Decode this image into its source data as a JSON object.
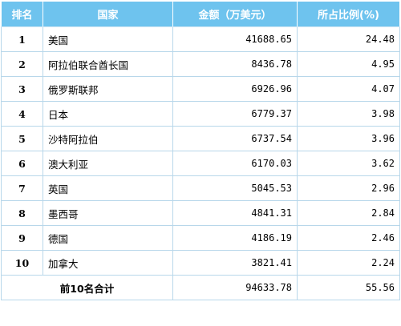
{
  "header": {
    "rank": "排名",
    "country": "国家",
    "amount": "金额（万美元）",
    "share": "所占比例(%)"
  },
  "rows": [
    {
      "rank": "1",
      "country": "美国",
      "amount": "41688.65",
      "share": "24.48"
    },
    {
      "rank": "2",
      "country": "阿拉伯联合酋长国",
      "amount": "8436.78",
      "share": "4.95"
    },
    {
      "rank": "3",
      "country": "俄罗斯联邦",
      "amount": "6926.96",
      "share": "4.07"
    },
    {
      "rank": "4",
      "country": "日本",
      "amount": "6779.37",
      "share": "3.98"
    },
    {
      "rank": "5",
      "country": "沙特阿拉伯",
      "amount": "6737.54",
      "share": "3.96"
    },
    {
      "rank": "6",
      "country": "澳大利亚",
      "amount": "6170.03",
      "share": "3.62"
    },
    {
      "rank": "7",
      "country": "英国",
      "amount": "5045.53",
      "share": "2.96"
    },
    {
      "rank": "8",
      "country": "墨西哥",
      "amount": "4841.31",
      "share": "2.84"
    },
    {
      "rank": "9",
      "country": "德国",
      "amount": "4186.19",
      "share": "2.46"
    },
    {
      "rank": "10",
      "country": "加拿大",
      "amount": "3821.41",
      "share": "2.24"
    }
  ],
  "total": {
    "label": "前10名合计",
    "amount": "94633.78",
    "share": "55.56"
  }
}
